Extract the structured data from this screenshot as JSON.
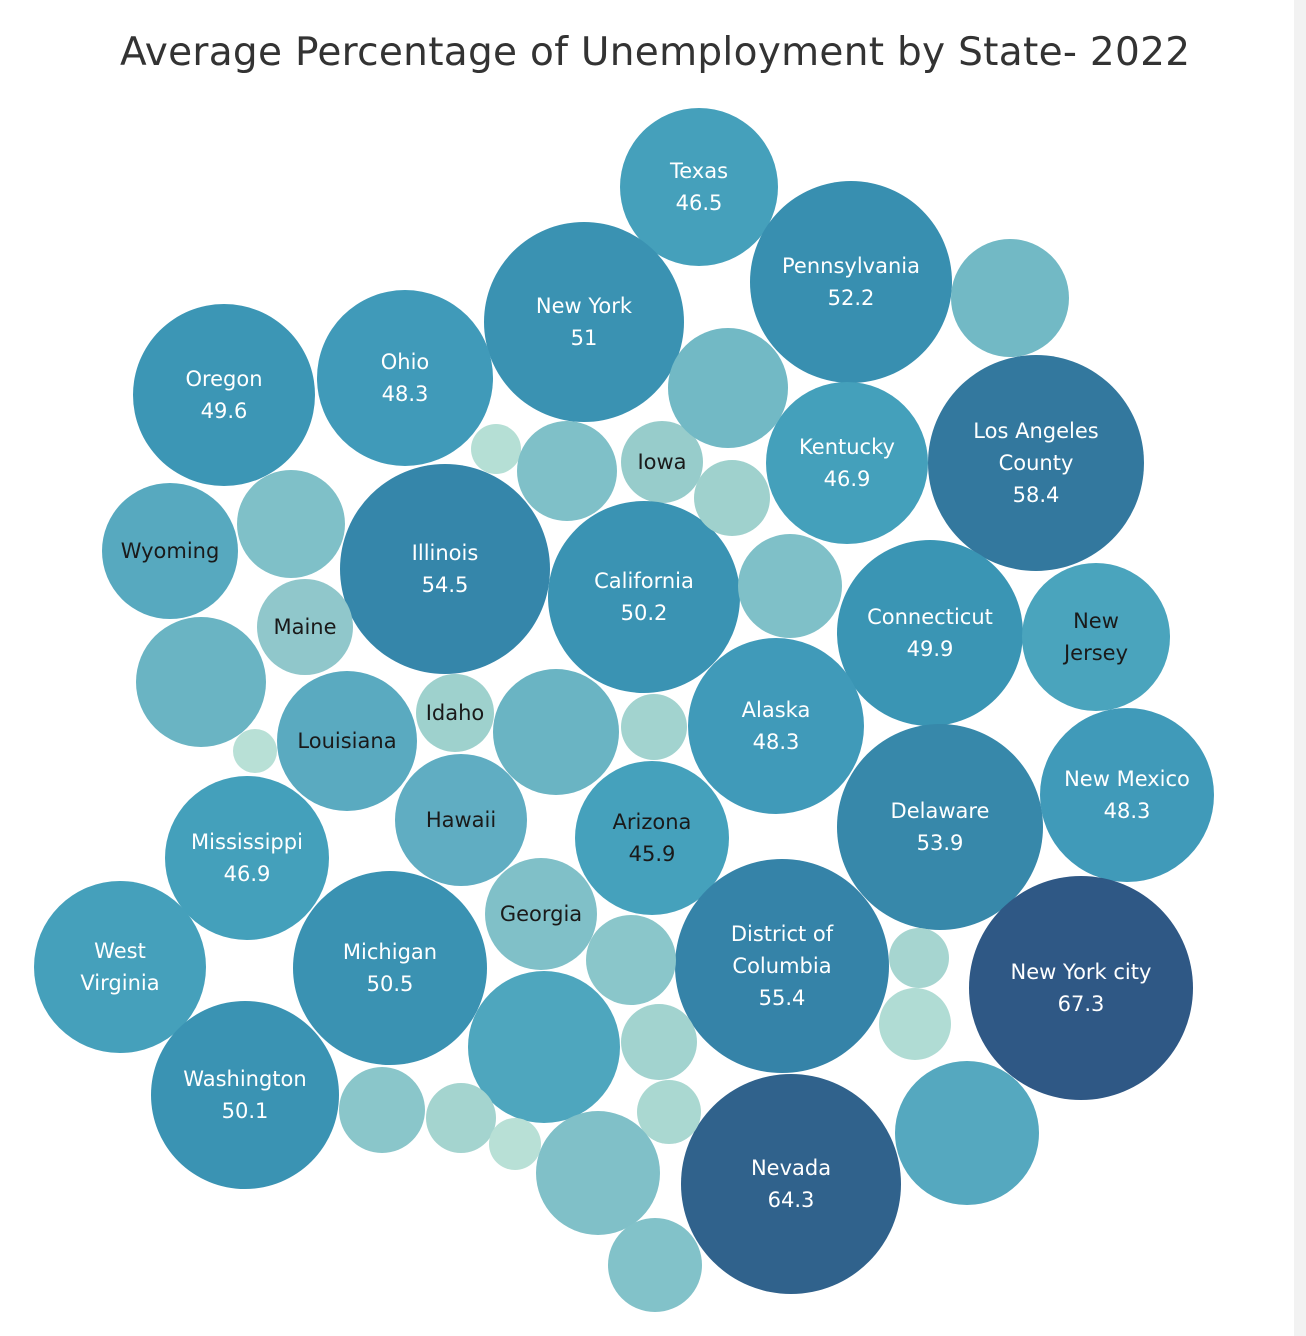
{
  "chart_data": {
    "type": "packed-bubble",
    "title": "Average Percentage of Unemployment by State- 2022",
    "bubbles": [
      {
        "label": [
          "Texas"
        ],
        "value": "46.5",
        "color": "#45a0bb",
        "text": "#ffffff"
      },
      {
        "label": [
          "Pennsylvania"
        ],
        "value": "52.2",
        "color": "#388fb0",
        "text": "#ffffff"
      },
      {
        "label": [
          "New York"
        ],
        "value": "51",
        "color": "#3a92b2",
        "text": "#ffffff"
      },
      {
        "label": [
          "Ohio"
        ],
        "value": "48.3",
        "color": "#409ab9",
        "text": "#ffffff"
      },
      {
        "label": [
          "Oregon"
        ],
        "value": "49.6",
        "color": "#3c96b5",
        "text": "#ffffff"
      },
      {
        "label": [
          "Los Angeles",
          "County"
        ],
        "value": "58.4",
        "color": "#33789e",
        "text": "#ffffff"
      },
      {
        "label": [
          "Kentucky"
        ],
        "value": "46.9",
        "color": "#44a0bb",
        "text": "#ffffff"
      },
      {
        "label": [
          "Iowa"
        ],
        "value": "",
        "color": "#97cccb",
        "text": "#1a1a1a"
      },
      {
        "label": [
          "Illinois"
        ],
        "value": "54.5",
        "color": "#3586aa",
        "text": "#ffffff"
      },
      {
        "label": [
          "California"
        ],
        "value": "50.2",
        "color": "#3a93b3",
        "text": "#ffffff"
      },
      {
        "label": [
          "Wyoming"
        ],
        "value": "",
        "color": "#57a9bf",
        "text": "#1a1a1a"
      },
      {
        "label": [
          "Maine"
        ],
        "value": "",
        "color": "#90c7cb",
        "text": "#1a1a1a"
      },
      {
        "label": [
          "Connecticut"
        ],
        "value": "49.9",
        "color": "#3a95b4",
        "text": "#ffffff"
      },
      {
        "label": [
          "New",
          "Jersey"
        ],
        "value": "",
        "color": "#4aa4bd",
        "text": "#1a1a1a"
      },
      {
        "label": [
          "Alaska"
        ],
        "value": "48.3",
        "color": "#409ab9",
        "text": "#ffffff"
      },
      {
        "label": [
          "Idaho"
        ],
        "value": "",
        "color": "#9ed1cd",
        "text": "#1a1a1a"
      },
      {
        "label": [
          "Louisiana"
        ],
        "value": "",
        "color": "#5aaac0",
        "text": "#1a1a1a"
      },
      {
        "label": [
          "Delaware"
        ],
        "value": "53.9",
        "color": "#3788aa",
        "text": "#ffffff"
      },
      {
        "label": [
          "New Mexico"
        ],
        "value": "48.3",
        "color": "#409ab9",
        "text": "#ffffff"
      },
      {
        "label": [
          "Hawaii"
        ],
        "value": "",
        "color": "#60adc2",
        "text": "#1a1a1a"
      },
      {
        "label": [
          "Arizona"
        ],
        "value": "45.9",
        "color": "#45a1bc",
        "text": "#1a1a1a"
      },
      {
        "label": [
          "Mississippi"
        ],
        "value": "46.9",
        "color": "#44a0bb",
        "text": "#ffffff"
      },
      {
        "label": [
          "Georgia"
        ],
        "value": "",
        "color": "#80c0c8",
        "text": "#1a1a1a"
      },
      {
        "label": [
          "District of",
          "Columbia"
        ],
        "value": "55.4",
        "color": "#3583a8",
        "text": "#ffffff"
      },
      {
        "label": [
          "West",
          "Virginia"
        ],
        "value": "",
        "color": "#45a0bb",
        "text": "#ffffff"
      },
      {
        "label": [
          "Michigan"
        ],
        "value": "50.5",
        "color": "#3a92b2",
        "text": "#ffffff"
      },
      {
        "label": [
          "New York city"
        ],
        "value": "67.3",
        "color": "#2f5885",
        "text": "#ffffff"
      },
      {
        "label": [
          "Washington"
        ],
        "value": "50.1",
        "color": "#3a93b3",
        "text": "#ffffff"
      },
      {
        "label": [
          "Nevada"
        ],
        "value": "64.3",
        "color": "#30628c",
        "text": "#ffffff"
      },
      {
        "label": [],
        "value": "",
        "color": "#72b9c5"
      },
      {
        "label": [],
        "value": "",
        "color": "#72b9c5"
      },
      {
        "label": [],
        "value": "",
        "color": "#b5dfd5"
      },
      {
        "label": [],
        "value": "",
        "color": "#7fc0c8"
      },
      {
        "label": [],
        "value": "",
        "color": "#9fd1cd"
      },
      {
        "label": [],
        "value": "",
        "color": "#7fc0c8"
      },
      {
        "label": [],
        "value": "",
        "color": "#7fc0c8"
      },
      {
        "label": [],
        "value": "",
        "color": "#6ab4c3"
      },
      {
        "label": [],
        "value": "",
        "color": "#b8e0d6"
      },
      {
        "label": [],
        "value": "",
        "color": "#6ab4c3"
      },
      {
        "label": [],
        "value": "",
        "color": "#a2d3cf"
      },
      {
        "label": [],
        "value": "",
        "color": "#8ac6ca"
      },
      {
        "label": [],
        "value": "",
        "color": "#a2d3cf"
      },
      {
        "label": [],
        "value": "",
        "color": "#a6d5d0"
      },
      {
        "label": [],
        "value": "",
        "color": "#4ea6be"
      },
      {
        "label": [],
        "value": "",
        "color": "#b0dcd4"
      },
      {
        "label": [],
        "value": "",
        "color": "#55a8bf"
      },
      {
        "label": [],
        "value": "",
        "color": "#8ac6ca"
      },
      {
        "label": [],
        "value": "",
        "color": "#a4d4cf"
      },
      {
        "label": [],
        "value": "",
        "color": "#b8e0d6"
      },
      {
        "label": [],
        "value": "",
        "color": "#aad8d1"
      },
      {
        "label": [],
        "value": "",
        "color": "#80c0c8"
      },
      {
        "label": [],
        "value": "",
        "color": "#82c2c9"
      }
    ]
  }
}
